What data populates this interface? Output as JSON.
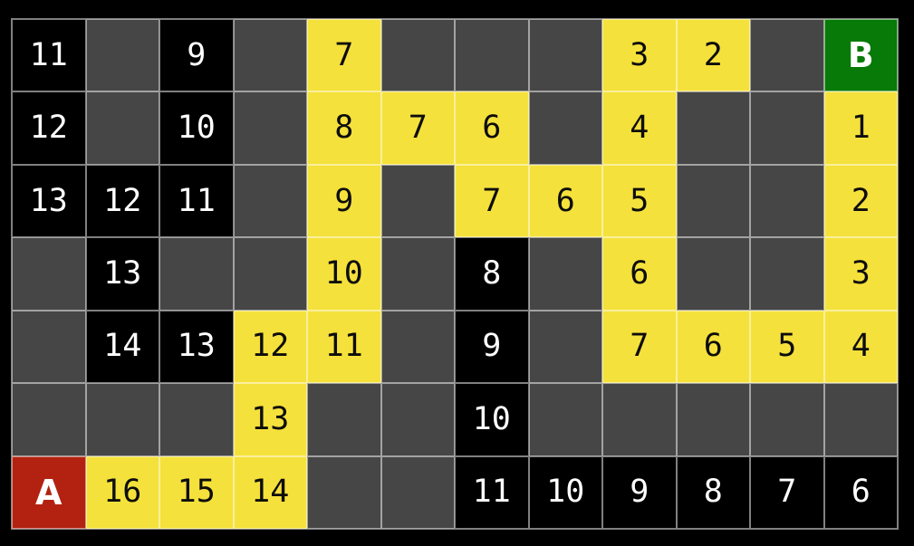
{
  "colors": {
    "background": "#000000",
    "empty-cell": "#464646",
    "visited-cell": "#000000",
    "path-cell": "#f5e13b",
    "start-cell": "#b32210",
    "goal-cell": "#077a07",
    "gridline": "rgba(255,255,255,0.5)",
    "visited-text": "#ffffff",
    "path-text": "#0d0d0d",
    "marker-text": "#ffffff"
  },
  "grid": {
    "rows": 7,
    "cols": 12,
    "start_label": "A",
    "goal_label": "B",
    "cell_types": {
      "empty": "unvisited dark gray cell",
      "visited": "visited black cell with white distance number",
      "path": "yellow path cell with black distance number",
      "start": "red start cell",
      "goal": "green goal cell"
    },
    "cells": [
      [
        {
          "t": "visited",
          "v": "11"
        },
        {
          "t": "empty",
          "v": ""
        },
        {
          "t": "visited",
          "v": "9"
        },
        {
          "t": "empty",
          "v": ""
        },
        {
          "t": "path",
          "v": "7"
        },
        {
          "t": "empty",
          "v": ""
        },
        {
          "t": "empty",
          "v": ""
        },
        {
          "t": "empty",
          "v": ""
        },
        {
          "t": "path",
          "v": "3"
        },
        {
          "t": "path",
          "v": "2"
        },
        {
          "t": "empty",
          "v": ""
        },
        {
          "t": "goal",
          "v": "B"
        }
      ],
      [
        {
          "t": "visited",
          "v": "12"
        },
        {
          "t": "empty",
          "v": ""
        },
        {
          "t": "visited",
          "v": "10"
        },
        {
          "t": "empty",
          "v": ""
        },
        {
          "t": "path",
          "v": "8"
        },
        {
          "t": "path",
          "v": "7"
        },
        {
          "t": "path",
          "v": "6"
        },
        {
          "t": "empty",
          "v": ""
        },
        {
          "t": "path",
          "v": "4"
        },
        {
          "t": "empty",
          "v": ""
        },
        {
          "t": "empty",
          "v": ""
        },
        {
          "t": "path",
          "v": "1"
        }
      ],
      [
        {
          "t": "visited",
          "v": "13"
        },
        {
          "t": "visited",
          "v": "12"
        },
        {
          "t": "visited",
          "v": "11"
        },
        {
          "t": "empty",
          "v": ""
        },
        {
          "t": "path",
          "v": "9"
        },
        {
          "t": "empty",
          "v": ""
        },
        {
          "t": "path",
          "v": "7"
        },
        {
          "t": "path",
          "v": "6"
        },
        {
          "t": "path",
          "v": "5"
        },
        {
          "t": "empty",
          "v": ""
        },
        {
          "t": "empty",
          "v": ""
        },
        {
          "t": "path",
          "v": "2"
        }
      ],
      [
        {
          "t": "empty",
          "v": ""
        },
        {
          "t": "visited",
          "v": "13"
        },
        {
          "t": "empty",
          "v": ""
        },
        {
          "t": "empty",
          "v": ""
        },
        {
          "t": "path",
          "v": "10"
        },
        {
          "t": "empty",
          "v": ""
        },
        {
          "t": "visited",
          "v": "8"
        },
        {
          "t": "empty",
          "v": ""
        },
        {
          "t": "path",
          "v": "6"
        },
        {
          "t": "empty",
          "v": ""
        },
        {
          "t": "empty",
          "v": ""
        },
        {
          "t": "path",
          "v": "3"
        }
      ],
      [
        {
          "t": "empty",
          "v": ""
        },
        {
          "t": "visited",
          "v": "14"
        },
        {
          "t": "visited",
          "v": "13"
        },
        {
          "t": "path",
          "v": "12"
        },
        {
          "t": "path",
          "v": "11"
        },
        {
          "t": "empty",
          "v": ""
        },
        {
          "t": "visited",
          "v": "9"
        },
        {
          "t": "empty",
          "v": ""
        },
        {
          "t": "path",
          "v": "7"
        },
        {
          "t": "path",
          "v": "6"
        },
        {
          "t": "path",
          "v": "5"
        },
        {
          "t": "path",
          "v": "4"
        }
      ],
      [
        {
          "t": "empty",
          "v": ""
        },
        {
          "t": "empty",
          "v": ""
        },
        {
          "t": "empty",
          "v": ""
        },
        {
          "t": "path",
          "v": "13"
        },
        {
          "t": "empty",
          "v": ""
        },
        {
          "t": "empty",
          "v": ""
        },
        {
          "t": "visited",
          "v": "10"
        },
        {
          "t": "empty",
          "v": ""
        },
        {
          "t": "empty",
          "v": ""
        },
        {
          "t": "empty",
          "v": ""
        },
        {
          "t": "empty",
          "v": ""
        },
        {
          "t": "empty",
          "v": ""
        }
      ],
      [
        {
          "t": "start",
          "v": "A"
        },
        {
          "t": "path",
          "v": "16"
        },
        {
          "t": "path",
          "v": "15"
        },
        {
          "t": "path",
          "v": "14"
        },
        {
          "t": "empty",
          "v": ""
        },
        {
          "t": "empty",
          "v": ""
        },
        {
          "t": "visited",
          "v": "11"
        },
        {
          "t": "visited",
          "v": "10"
        },
        {
          "t": "visited",
          "v": "9"
        },
        {
          "t": "visited",
          "v": "8"
        },
        {
          "t": "visited",
          "v": "7"
        },
        {
          "t": "visited",
          "v": "6"
        }
      ]
    ]
  }
}
